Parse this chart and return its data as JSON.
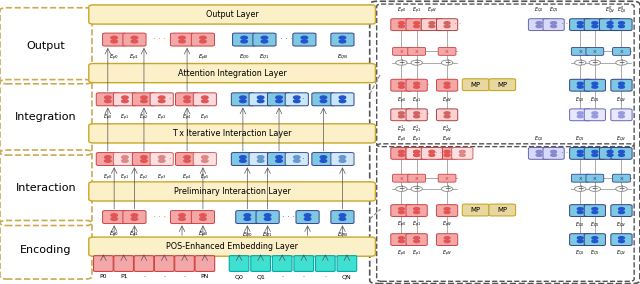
{
  "fig_width": 6.4,
  "fig_height": 2.84,
  "bg_color": "#ffffff",
  "left_labels": [
    "Output",
    "Integration",
    "Interaction",
    "Encoding"
  ],
  "layer_texts": [
    "Output Layer",
    "Attention Integration Layer",
    "T x Iterative Interaction Layer",
    "Preliminary Interaction Layer",
    "POS-Enhanced Embedding Layer"
  ],
  "p_dark": "#E05555",
  "p_light": "#F4A7A7",
  "p_border": "#CC4444",
  "q_dark": "#2255CC",
  "q_light": "#7EC8E3",
  "q_border": "#334488",
  "mp_bg": "#E8D8A0",
  "mp_border": "#C8A828",
  "layer_bg": "#FBF0C8",
  "layer_border": "#C8A828",
  "left_box_border": "#CCAA55",
  "connector_color": "#888888",
  "gate_color": "#888888"
}
